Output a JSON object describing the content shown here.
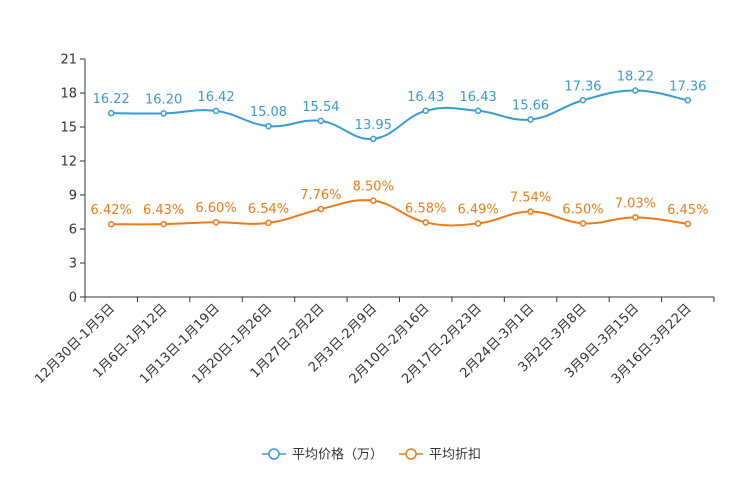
{
  "chart_data": {
    "type": "line",
    "title": "",
    "xlabel": "",
    "ylabel": "",
    "ylim": [
      0,
      21
    ],
    "yticks": [
      "0",
      "3",
      "6",
      "9",
      "12",
      "15",
      "18",
      "21"
    ],
    "categories": [
      "12月30日-1月5日",
      "1月6日-1月12日",
      "1月13日-1月19日",
      "1月20日-1月26日",
      "1月27日-2月2日",
      "2月3日-2月9日",
      "2月10日-2月16日",
      "2月17日-2月23日",
      "2月24日-3月1日",
      "3月2日-3月8日",
      "3月9日-3月15日",
      "3月16日-3月22日"
    ],
    "series": [
      {
        "name": "平均价格（万）",
        "color": "#3a9bd0",
        "values": [
          16.22,
          16.2,
          16.42,
          15.08,
          15.54,
          13.95,
          16.43,
          16.43,
          15.66,
          17.36,
          18.22,
          17.36
        ],
        "labels": [
          "16.22",
          "16.20",
          "16.42",
          "15.08",
          "15.54",
          "13.95",
          "16.43",
          "16.43",
          "15.66",
          "17.36",
          "18.22",
          "17.36"
        ]
      },
      {
        "name": "平均折扣",
        "color": "#f07a1a",
        "values": [
          6.42,
          6.43,
          6.6,
          6.54,
          7.76,
          8.5,
          6.58,
          6.49,
          7.54,
          6.5,
          7.03,
          6.45
        ],
        "labels": [
          "6.42%",
          "6.43%",
          "6.60%",
          "6.54%",
          "7.76%",
          "8.50%",
          "6.58%",
          "6.49%",
          "7.54%",
          "6.50%",
          "7.03%",
          "6.45%"
        ]
      }
    ],
    "legend_position": "bottom",
    "grid": false
  }
}
